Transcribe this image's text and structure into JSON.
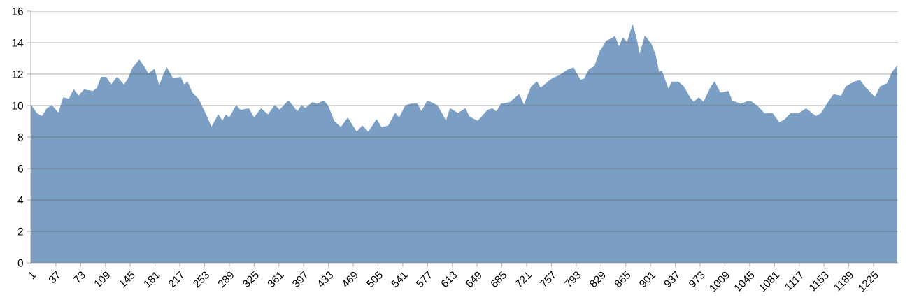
{
  "chart_data": {
    "type": "area",
    "color": "#7b9fc4",
    "grid": "y",
    "xlim": [
      0.5,
      1260.5
    ],
    "ylim": [
      0,
      16
    ],
    "yticks": [
      0,
      2,
      4,
      6,
      8,
      10,
      12,
      14,
      16
    ],
    "xticks": [
      1,
      37,
      73,
      109,
      145,
      181,
      217,
      253,
      289,
      325,
      361,
      397,
      433,
      469,
      505,
      541,
      577,
      613,
      649,
      685,
      721,
      757,
      793,
      829,
      865,
      901,
      937,
      973,
      1009,
      1045,
      1081,
      1117,
      1153,
      1189,
      1225
    ],
    "x": [
      1,
      9,
      17,
      24,
      31,
      41,
      48,
      56,
      63,
      70,
      78,
      91,
      97,
      103,
      110,
      117,
      126,
      136,
      142,
      149,
      158,
      166,
      171,
      180,
      187,
      192,
      198,
      207,
      218,
      223,
      228,
      235,
      244,
      254,
      263,
      273,
      279,
      284,
      289,
      299,
      305,
      317,
      325,
      335,
      345,
      355,
      362,
      375,
      388,
      394,
      399,
      410,
      417,
      426,
      432,
      441,
      451,
      461,
      474,
      482,
      491,
      503,
      510,
      520,
      530,
      536,
      545,
      553,
      562,
      568,
      577,
      591,
      604,
      610,
      621,
      632,
      637,
      650,
      664,
      671,
      677,
      684,
      697,
      710,
      717,
      728,
      736,
      741,
      758,
      768,
      782,
      789,
      799,
      805,
      812,
      820,
      827,
      837,
      846,
      849,
      855,
      861,
      867,
      875,
      880,
      885,
      893,
      902,
      908,
      913,
      917,
      927,
      932,
      941,
      949,
      958,
      964,
      971,
      978,
      989,
      994,
      1002,
      1014,
      1019,
      1032,
      1045,
      1055,
      1066,
      1078,
      1088,
      1096,
      1105,
      1117,
      1127,
      1141,
      1149,
      1156,
      1167,
      1178,
      1185,
      1197,
      1205,
      1214,
      1227,
      1235,
      1245,
      1252,
      1259
    ],
    "values": [
      10.0,
      9.5,
      9.3,
      9.8,
      10.0,
      9.5,
      10.5,
      10.4,
      11.0,
      10.6,
      11.0,
      10.9,
      11.1,
      11.8,
      11.8,
      11.3,
      11.8,
      11.3,
      11.7,
      12.4,
      12.9,
      12.4,
      12.0,
      12.3,
      11.2,
      11.8,
      12.4,
      11.7,
      11.8,
      11.3,
      11.5,
      10.8,
      10.4,
      9.5,
      8.6,
      9.4,
      9.0,
      9.4,
      9.2,
      10.0,
      9.7,
      9.8,
      9.2,
      9.8,
      9.4,
      10.0,
      9.7,
      10.3,
      9.6,
      10.0,
      9.8,
      10.2,
      10.1,
      10.3,
      10.0,
      9.0,
      8.6,
      9.2,
      8.3,
      8.7,
      8.3,
      9.1,
      8.6,
      8.7,
      9.5,
      9.2,
      10.0,
      10.1,
      10.1,
      9.6,
      10.3,
      10.0,
      9.0,
      9.8,
      9.5,
      9.8,
      9.3,
      9.0,
      9.7,
      9.8,
      9.6,
      10.1,
      10.2,
      10.7,
      10.0,
      11.2,
      11.5,
      11.1,
      11.7,
      11.9,
      12.3,
      12.4,
      11.6,
      11.7,
      12.3,
      12.5,
      13.4,
      14.1,
      14.3,
      14.4,
      13.7,
      14.3,
      14.0,
      15.1,
      14.3,
      13.2,
      14.4,
      13.9,
      13.2,
      12.1,
      12.2,
      11.0,
      11.5,
      11.5,
      11.2,
      10.5,
      10.2,
      10.5,
      10.2,
      11.2,
      11.5,
      10.8,
      10.9,
      10.3,
      10.1,
      10.3,
      10.0,
      9.5,
      9.5,
      8.9,
      9.1,
      9.5,
      9.5,
      9.8,
      9.3,
      9.5,
      10.0,
      10.7,
      10.6,
      11.2,
      11.5,
      11.6,
      11.1,
      10.5,
      11.2,
      11.4,
      12.1,
      12.5
    ]
  }
}
